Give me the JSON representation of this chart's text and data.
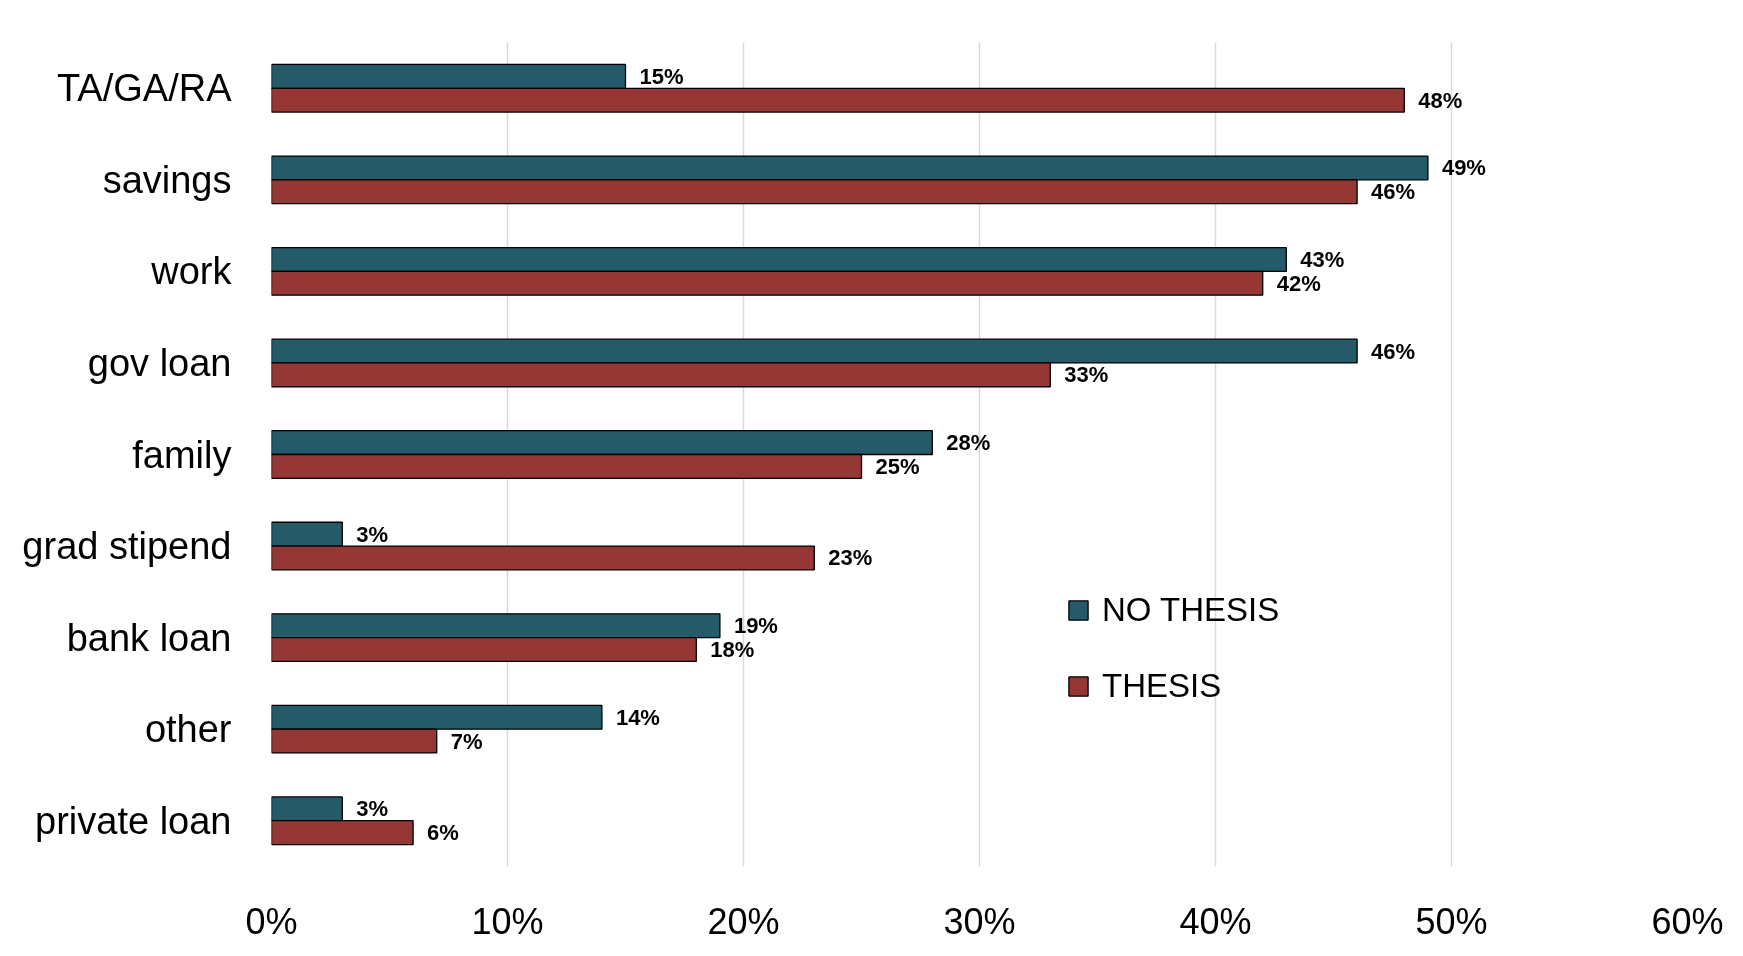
{
  "chart_data": {
    "type": "bar",
    "orientation": "horizontal",
    "categories": [
      "TA/GA/RA",
      "savings",
      "work",
      "gov loan",
      "family",
      "grad stipend",
      "bank loan",
      "other",
      "private loan"
    ],
    "series": [
      {
        "name": "NO THESIS",
        "color": "#255a69",
        "values": [
          15,
          49,
          43,
          46,
          28,
          3,
          19,
          14,
          3
        ],
        "value_labels": [
          "15%",
          "49%",
          "43%",
          "46%",
          "28%",
          "3%",
          "19%",
          "14%",
          "3%"
        ]
      },
      {
        "name": "THESIS",
        "color": "#953735",
        "values": [
          48,
          46,
          42,
          33,
          25,
          23,
          18,
          7,
          6
        ],
        "value_labels": [
          "48%",
          "46%",
          "42%",
          "33%",
          "25%",
          "23%",
          "18%",
          "7%",
          "6%"
        ]
      }
    ],
    "xlim": [
      0,
      60
    ],
    "xticks": [
      {
        "value": 0,
        "label": "0%"
      },
      {
        "value": 10,
        "label": "10%"
      },
      {
        "value": 20,
        "label": "20%"
      },
      {
        "value": 30,
        "label": "30%"
      },
      {
        "value": 40,
        "label": "40%"
      },
      {
        "value": 50,
        "label": "50%"
      },
      {
        "value": 60,
        "label": "60%"
      }
    ],
    "grid": "x",
    "legend": "bottom right"
  }
}
